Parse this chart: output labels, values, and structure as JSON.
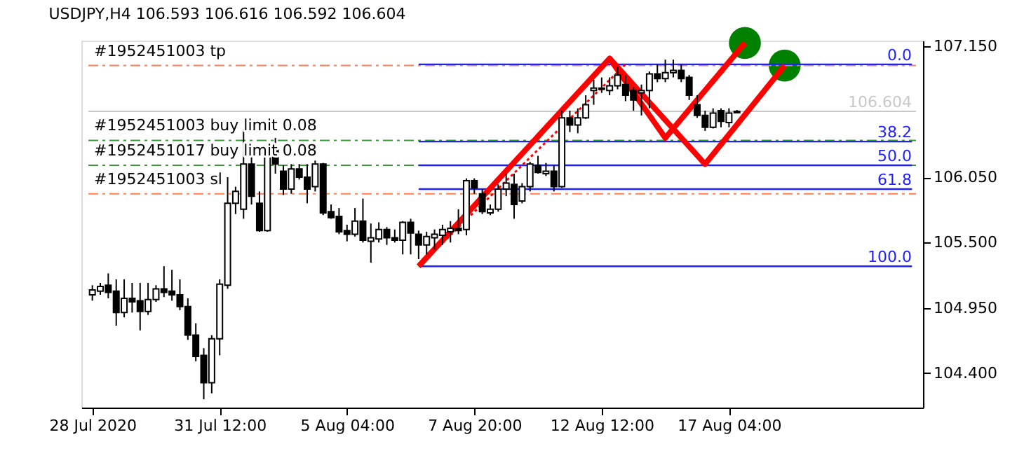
{
  "chart_data": {
    "type": "candlestick",
    "title": "USDJPY,H4  106.593 106.616 106.592 106.604",
    "categories": [
      "28 Jul 2020",
      null,
      null,
      null,
      null,
      null,
      null,
      null,
      null,
      null,
      null,
      null,
      null,
      null,
      null,
      null,
      "31 Jul 12:00",
      null,
      null,
      null,
      null,
      null,
      null,
      null,
      null,
      null,
      null,
      null,
      null,
      null,
      null,
      null,
      "5 Aug 04:00",
      null,
      null,
      null,
      null,
      null,
      null,
      null,
      null,
      null,
      null,
      null,
      null,
      null,
      null,
      null,
      "7 Aug 20:00",
      null,
      null,
      null,
      null,
      null,
      null,
      null,
      null,
      null,
      null,
      null,
      null,
      null,
      null,
      null,
      "12 Aug 12:00",
      null,
      null,
      null,
      null,
      null,
      null,
      null,
      null,
      null,
      null,
      null,
      null,
      null,
      null,
      null,
      "17 Aug 04:00",
      null,
      null,
      null,
      null,
      null,
      null,
      null,
      null,
      null,
      null,
      null,
      null,
      null,
      null,
      null,
      null,
      null,
      null,
      null,
      null,
      null,
      null,
      null
    ],
    "ohlc": [
      [
        105.06,
        105.14,
        105.01,
        105.1
      ],
      [
        105.09,
        105.16,
        105.06,
        105.13
      ],
      [
        105.14,
        105.24,
        105.03,
        105.08
      ],
      [
        105.09,
        105.19,
        104.8,
        104.91
      ],
      [
        104.91,
        105.19,
        104.87,
        105.03
      ],
      [
        105.03,
        105.16,
        104.91,
        105.0
      ],
      [
        105.01,
        105.16,
        104.76,
        104.92
      ],
      [
        104.92,
        105.16,
        104.89,
        105.02
      ],
      [
        105.02,
        105.14,
        105.0,
        105.11
      ],
      [
        105.11,
        105.3,
        105.04,
        105.08
      ],
      [
        105.09,
        105.27,
        105.01,
        105.06
      ],
      [
        105.06,
        105.19,
        104.93,
        104.96
      ],
      [
        104.96,
        105.03,
        104.68,
        104.72
      ],
      [
        104.72,
        104.82,
        104.5,
        104.54
      ],
      [
        104.55,
        104.61,
        104.18,
        104.32
      ],
      [
        104.32,
        104.72,
        104.23,
        104.69
      ],
      [
        104.69,
        105.19,
        104.55,
        105.15
      ],
      [
        105.14,
        106.05,
        105.11,
        105.83
      ],
      [
        105.83,
        105.97,
        105.74,
        105.93
      ],
      [
        105.78,
        106.46,
        105.7,
        106.16
      ],
      [
        106.16,
        106.23,
        105.82,
        105.89
      ],
      [
        105.83,
        105.93,
        105.59,
        105.6
      ],
      [
        105.6,
        106.31,
        105.59,
        106.27
      ],
      [
        106.28,
        106.38,
        106.08,
        106.16
      ],
      [
        106.1,
        106.15,
        105.9,
        105.95
      ],
      [
        105.95,
        106.16,
        105.91,
        106.12
      ],
      [
        106.12,
        106.16,
        106.03,
        106.05
      ],
      [
        106.05,
        106.16,
        105.83,
        105.95
      ],
      [
        105.97,
        106.19,
        105.93,
        106.16
      ],
      [
        106.16,
        106.17,
        105.73,
        105.75
      ],
      [
        105.76,
        105.82,
        105.7,
        105.71
      ],
      [
        105.72,
        105.79,
        105.57,
        105.59
      ],
      [
        105.6,
        105.65,
        105.51,
        105.57
      ],
      [
        105.57,
        105.79,
        105.55,
        105.68
      ],
      [
        105.68,
        105.87,
        105.5,
        105.52
      ],
      [
        105.51,
        105.66,
        105.33,
        105.54
      ],
      [
        105.53,
        105.67,
        105.5,
        105.61
      ],
      [
        105.61,
        105.63,
        105.48,
        105.54
      ],
      [
        105.54,
        105.61,
        105.5,
        105.52
      ],
      [
        105.52,
        105.68,
        105.4,
        105.67
      ],
      [
        105.67,
        105.7,
        105.4,
        105.58
      ],
      [
        105.57,
        105.6,
        105.36,
        105.48
      ],
      [
        105.48,
        105.59,
        105.4,
        105.55
      ],
      [
        105.54,
        105.61,
        105.44,
        105.57
      ],
      [
        105.56,
        105.65,
        105.48,
        105.61
      ],
      [
        105.59,
        105.68,
        105.5,
        105.62
      ],
      [
        105.62,
        105.78,
        105.57,
        105.6
      ],
      [
        105.61,
        106.04,
        105.56,
        106.02
      ],
      [
        106.02,
        106.04,
        105.91,
        105.96
      ],
      [
        105.91,
        105.95,
        105.74,
        105.76
      ],
      [
        105.75,
        105.82,
        105.73,
        105.78
      ],
      [
        105.78,
        105.99,
        105.76,
        105.95
      ],
      [
        105.95,
        106.08,
        105.89,
        106.0
      ],
      [
        105.99,
        106.08,
        105.7,
        105.82
      ],
      [
        105.85,
        106.0,
        105.83,
        105.97
      ],
      [
        105.97,
        106.18,
        105.93,
        106.16
      ],
      [
        106.15,
        106.23,
        106.08,
        106.09
      ],
      [
        106.08,
        106.17,
        106.06,
        106.1
      ],
      [
        106.1,
        106.15,
        105.93,
        105.97
      ],
      [
        105.97,
        106.61,
        105.96,
        106.55
      ],
      [
        106.55,
        106.61,
        106.43,
        106.49
      ],
      [
        106.49,
        106.63,
        106.42,
        106.55
      ],
      [
        106.55,
        106.74,
        106.54,
        106.66
      ],
      [
        106.78,
        106.87,
        106.66,
        106.8
      ],
      [
        106.8,
        106.89,
        106.76,
        106.79
      ],
      [
        106.78,
        106.89,
        106.74,
        106.82
      ],
      [
        106.82,
        106.98,
        106.79,
        106.91
      ],
      [
        106.83,
        106.91,
        106.69,
        106.74
      ],
      [
        106.78,
        106.81,
        106.61,
        106.7
      ],
      [
        106.76,
        106.83,
        106.57,
        106.78
      ],
      [
        106.78,
        106.94,
        106.63,
        106.92
      ],
      [
        106.92,
        107.0,
        106.85,
        106.88
      ],
      [
        106.88,
        107.04,
        106.85,
        106.93
      ],
      [
        106.93,
        107.04,
        106.89,
        106.95
      ],
      [
        106.95,
        107.0,
        106.85,
        106.88
      ],
      [
        106.89,
        106.91,
        106.7,
        106.74
      ],
      [
        106.66,
        106.74,
        106.55,
        106.57
      ],
      [
        106.57,
        106.61,
        106.44,
        106.47
      ],
      [
        106.47,
        106.63,
        106.46,
        106.59
      ],
      [
        106.61,
        106.63,
        106.47,
        106.52
      ],
      [
        106.51,
        106.63,
        106.47,
        106.59
      ],
      [
        106.593,
        106.616,
        106.592,
        106.604
      ],
      null,
      null,
      null,
      null,
      null,
      null,
      null,
      null,
      null,
      null,
      null,
      null,
      null,
      null,
      null,
      null,
      null,
      null,
      null,
      null,
      null,
      null
    ],
    "ylim": [
      104.11,
      107.2
    ],
    "yticks": [
      {
        "value": 104.4,
        "label": "104.400"
      },
      {
        "value": 104.95,
        "label": "104.950"
      },
      {
        "value": 105.5,
        "label": "105.500"
      },
      {
        "value": 106.05,
        "label": "106.050"
      },
      {
        "value": 107.15,
        "label": "107.150"
      }
    ],
    "grid": false,
    "ref_lines": [
      {
        "axis": "y",
        "value": 106.99,
        "label": "#1952451003 tp",
        "color": "#ff7f50",
        "line_style": "dashed"
      },
      {
        "axis": "y",
        "value": 106.36,
        "label": "#1952451003 buy limit 0.08",
        "color": "#3c9a3c",
        "line_style": "dashed"
      },
      {
        "axis": "y",
        "value": 106.15,
        "label": "#1952451017 buy limit 0.08",
        "color": "#3c9a3c",
        "line_style": "dashed"
      },
      {
        "axis": "y",
        "value": 105.91,
        "label": "#1952451003 sl",
        "color": "#ff7f50",
        "line_style": "dashed"
      },
      {
        "axis": "y",
        "value": 106.604,
        "label": "106.604",
        "color": "#c8c8c8",
        "line_style": "solid"
      }
    ],
    "annotations": [
      {
        "text": "0.0",
        "y": 107.0
      },
      {
        "text": "38.2",
        "y": 106.35
      },
      {
        "text": "50.0",
        "y": 106.15
      },
      {
        "text": "61.8",
        "y": 105.95
      },
      {
        "text": "100.0",
        "y": 105.3
      }
    ],
    "series": [
      {
        "type": "line",
        "color": "#2020ff",
        "line_style": "solid",
        "values": [
          null,
          null,
          null,
          null,
          null,
          null,
          null,
          null,
          null,
          null,
          null,
          null,
          null,
          null,
          null,
          null,
          null,
          null,
          null,
          null,
          null,
          null,
          null,
          null,
          null,
          null,
          null,
          null,
          null,
          null,
          null,
          null,
          null,
          null,
          null,
          null,
          null,
          null,
          null,
          null,
          null,
          107.0,
          107.0,
          107.0,
          107.0,
          107.0,
          107.0,
          107.0,
          107.0,
          107.0,
          107.0,
          107.0,
          107.0,
          107.0,
          107.0,
          107.0,
          107.0,
          107.0,
          107.0,
          107.0,
          107.0,
          107.0,
          107.0,
          107.0,
          107.0,
          107.0,
          107.0,
          107.0,
          107.0,
          107.0,
          107.0,
          107.0,
          107.0,
          107.0,
          107.0,
          107.0,
          107.0,
          107.0,
          107.0,
          107.0,
          107.0,
          107.0,
          107.0,
          107.0,
          107.0,
          107.0,
          107.0,
          107.0,
          107.0,
          107.0,
          107.0,
          107.0,
          107.0,
          107.0,
          107.0,
          107.0,
          107.0,
          107.0,
          107.0,
          107.0,
          107.0,
          107.0,
          107.0,
          107.0
        ]
      },
      {
        "type": "line",
        "color": "#2020ff",
        "line_style": "solid",
        "values": [
          null,
          null,
          null,
          null,
          null,
          null,
          null,
          null,
          null,
          null,
          null,
          null,
          null,
          null,
          null,
          null,
          null,
          null,
          null,
          null,
          null,
          null,
          null,
          null,
          null,
          null,
          null,
          null,
          null,
          null,
          null,
          null,
          null,
          null,
          null,
          null,
          null,
          null,
          null,
          null,
          null,
          106.35,
          106.35,
          106.35,
          106.35,
          106.35,
          106.35,
          106.35,
          106.35,
          106.35,
          106.35,
          106.35,
          106.35,
          106.35,
          106.35,
          106.35,
          106.35,
          106.35,
          106.35,
          106.35,
          106.35,
          106.35,
          106.35,
          106.35,
          106.35,
          106.35,
          106.35,
          106.35,
          106.35,
          106.35,
          106.35,
          106.35,
          106.35,
          106.35,
          106.35,
          106.35,
          106.35,
          106.35,
          106.35,
          106.35,
          106.35,
          106.35,
          106.35,
          106.35,
          106.35,
          106.35,
          106.35,
          106.35,
          106.35,
          106.35,
          106.35,
          106.35,
          106.35,
          106.35,
          106.35,
          106.35,
          106.35,
          106.35,
          106.35,
          106.35,
          106.35,
          106.35,
          106.35,
          106.35
        ]
      },
      {
        "type": "line",
        "color": "#2020ff",
        "line_style": "solid",
        "values": [
          null,
          null,
          null,
          null,
          null,
          null,
          null,
          null,
          null,
          null,
          null,
          null,
          null,
          null,
          null,
          null,
          null,
          null,
          null,
          null,
          null,
          null,
          null,
          null,
          null,
          null,
          null,
          null,
          null,
          null,
          null,
          null,
          null,
          null,
          null,
          null,
          null,
          null,
          null,
          null,
          null,
          106.15,
          106.15,
          106.15,
          106.15,
          106.15,
          106.15,
          106.15,
          106.15,
          106.15,
          106.15,
          106.15,
          106.15,
          106.15,
          106.15,
          106.15,
          106.15,
          106.15,
          106.15,
          106.15,
          106.15,
          106.15,
          106.15,
          106.15,
          106.15,
          106.15,
          106.15,
          106.15,
          106.15,
          106.15,
          106.15,
          106.15,
          106.15,
          106.15,
          106.15,
          106.15,
          106.15,
          106.15,
          106.15,
          106.15,
          106.15,
          106.15,
          106.15,
          106.15,
          106.15,
          106.15,
          106.15,
          106.15,
          106.15,
          106.15,
          106.15,
          106.15,
          106.15,
          106.15,
          106.15,
          106.15,
          106.15,
          106.15,
          106.15,
          106.15,
          106.15,
          106.15,
          106.15,
          106.15
        ]
      },
      {
        "type": "line",
        "color": "#2020ff",
        "line_style": "solid",
        "values": [
          null,
          null,
          null,
          null,
          null,
          null,
          null,
          null,
          null,
          null,
          null,
          null,
          null,
          null,
          null,
          null,
          null,
          null,
          null,
          null,
          null,
          null,
          null,
          null,
          null,
          null,
          null,
          null,
          null,
          null,
          null,
          null,
          null,
          null,
          null,
          null,
          null,
          null,
          null,
          null,
          null,
          105.95,
          105.95,
          105.95,
          105.95,
          105.95,
          105.95,
          105.95,
          105.95,
          105.95,
          105.95,
          105.95,
          105.95,
          105.95,
          105.95,
          105.95,
          105.95,
          105.95,
          105.95,
          105.95,
          105.95,
          105.95,
          105.95,
          105.95,
          105.95,
          105.95,
          105.95,
          105.95,
          105.95,
          105.95,
          105.95,
          105.95,
          105.95,
          105.95,
          105.95,
          105.95,
          105.95,
          105.95,
          105.95,
          105.95,
          105.95,
          105.95,
          105.95,
          105.95,
          105.95,
          105.95,
          105.95,
          105.95,
          105.95,
          105.95,
          105.95,
          105.95,
          105.95,
          105.95,
          105.95,
          105.95,
          105.95,
          105.95,
          105.95,
          105.95,
          105.95,
          105.95,
          105.95,
          105.95
        ]
      },
      {
        "type": "line",
        "color": "#2020ff",
        "line_style": "solid",
        "values": [
          null,
          null,
          null,
          null,
          null,
          null,
          null,
          null,
          null,
          null,
          null,
          null,
          null,
          null,
          null,
          null,
          null,
          null,
          null,
          null,
          null,
          null,
          null,
          null,
          null,
          null,
          null,
          null,
          null,
          null,
          null,
          null,
          null,
          null,
          null,
          null,
          null,
          null,
          null,
          null,
          null,
          105.3,
          105.3,
          105.3,
          105.3,
          105.3,
          105.3,
          105.3,
          105.3,
          105.3,
          105.3,
          105.3,
          105.3,
          105.3,
          105.3,
          105.3,
          105.3,
          105.3,
          105.3,
          105.3,
          105.3,
          105.3,
          105.3,
          105.3,
          105.3,
          105.3,
          105.3,
          105.3,
          105.3,
          105.3,
          105.3,
          105.3,
          105.3,
          105.3,
          105.3,
          105.3,
          105.3,
          105.3,
          105.3,
          105.3,
          105.3,
          105.3,
          105.3,
          105.3,
          105.3,
          105.3,
          105.3,
          105.3,
          105.3,
          105.3,
          105.3,
          105.3,
          105.3,
          105.3,
          105.3,
          105.3,
          105.3,
          105.3,
          105.3,
          105.3,
          105.3,
          105.3,
          105.3,
          105.3
        ]
      },
      {
        "type": "line",
        "color": "#ff0000",
        "line_style": "solid",
        "values": [
          null,
          null,
          null,
          null,
          null,
          null,
          null,
          null,
          null,
          null,
          null,
          null,
          null,
          null,
          null,
          null,
          null,
          null,
          null,
          null,
          null,
          null,
          null,
          null,
          null,
          null,
          null,
          null,
          null,
          null,
          null,
          null,
          null,
          null,
          null,
          null,
          null,
          null,
          null,
          null,
          null,
          105.3,
          null,
          null,
          null,
          null,
          null,
          null,
          null,
          null,
          null,
          null,
          null,
          null,
          null,
          null,
          null,
          null,
          null,
          null,
          null,
          null,
          null,
          null,
          null,
          107.05,
          null,
          null,
          null,
          null,
          null,
          null,
          106.38,
          null,
          null,
          null,
          null,
          null,
          null,
          null,
          null,
          null,
          107.18,
          null,
          null,
          null,
          null,
          null,
          null,
          null,
          null,
          null,
          null,
          null,
          null,
          null,
          null,
          null,
          null,
          null,
          null,
          null,
          null,
          null
        ]
      },
      {
        "type": "line",
        "color": "#ff0000",
        "line_style": "solid",
        "values": [
          null,
          null,
          null,
          null,
          null,
          null,
          null,
          null,
          null,
          null,
          null,
          null,
          null,
          null,
          null,
          null,
          null,
          null,
          null,
          null,
          null,
          null,
          null,
          null,
          null,
          null,
          null,
          null,
          null,
          null,
          null,
          null,
          null,
          null,
          null,
          null,
          null,
          null,
          null,
          null,
          null,
          null,
          null,
          null,
          null,
          null,
          null,
          null,
          null,
          null,
          null,
          null,
          null,
          null,
          null,
          null,
          null,
          null,
          null,
          null,
          null,
          null,
          null,
          null,
          null,
          107.05,
          null,
          null,
          null,
          null,
          null,
          null,
          null,
          null,
          null,
          null,
          null,
          106.16,
          null,
          null,
          null,
          null,
          null,
          null,
          null,
          null,
          null,
          106.99,
          null,
          null,
          null,
          null,
          null,
          null,
          null,
          null,
          null,
          null,
          null,
          null,
          null,
          null,
          null,
          null
        ]
      },
      {
        "type": "line",
        "color": "#ff0000",
        "line_style": "dotted",
        "values": [
          null,
          null,
          null,
          null,
          null,
          null,
          null,
          null,
          null,
          null,
          null,
          null,
          null,
          null,
          null,
          null,
          null,
          null,
          null,
          null,
          null,
          null,
          null,
          null,
          null,
          null,
          null,
          null,
          null,
          null,
          null,
          null,
          null,
          null,
          null,
          null,
          null,
          null,
          null,
          null,
          null,
          105.3,
          null,
          null,
          null,
          null,
          null,
          null,
          null,
          null,
          null,
          null,
          null,
          null,
          null,
          null,
          null,
          null,
          null,
          null,
          null,
          null,
          null,
          null,
          null,
          null,
          null,
          107.0,
          null,
          null,
          null,
          null,
          null,
          null,
          null,
          null,
          null,
          null,
          null,
          null,
          null,
          null,
          null,
          null,
          null,
          null,
          null,
          null,
          null,
          null,
          null,
          null,
          null,
          null,
          null,
          null,
          null,
          null,
          null,
          null,
          null,
          null,
          null,
          null
        ]
      },
      {
        "type": "scatter",
        "color": "#008000",
        "marker": "circle",
        "values": [
          null,
          null,
          null,
          null,
          null,
          null,
          null,
          null,
          null,
          null,
          null,
          null,
          null,
          null,
          null,
          null,
          null,
          null,
          null,
          null,
          null,
          null,
          null,
          null,
          null,
          null,
          null,
          null,
          null,
          null,
          null,
          null,
          null,
          null,
          null,
          null,
          null,
          null,
          null,
          null,
          null,
          null,
          null,
          null,
          null,
          null,
          null,
          null,
          null,
          null,
          null,
          null,
          null,
          null,
          null,
          null,
          null,
          null,
          null,
          null,
          null,
          null,
          null,
          null,
          null,
          null,
          null,
          null,
          null,
          null,
          null,
          null,
          null,
          null,
          null,
          null,
          null,
          null,
          null,
          null,
          null,
          null,
          107.18,
          null,
          null,
          null,
          null,
          106.99,
          null,
          null,
          null,
          null,
          null,
          null,
          null,
          null,
          null,
          null,
          null,
          null,
          null,
          null,
          null,
          null
        ]
      }
    ]
  }
}
